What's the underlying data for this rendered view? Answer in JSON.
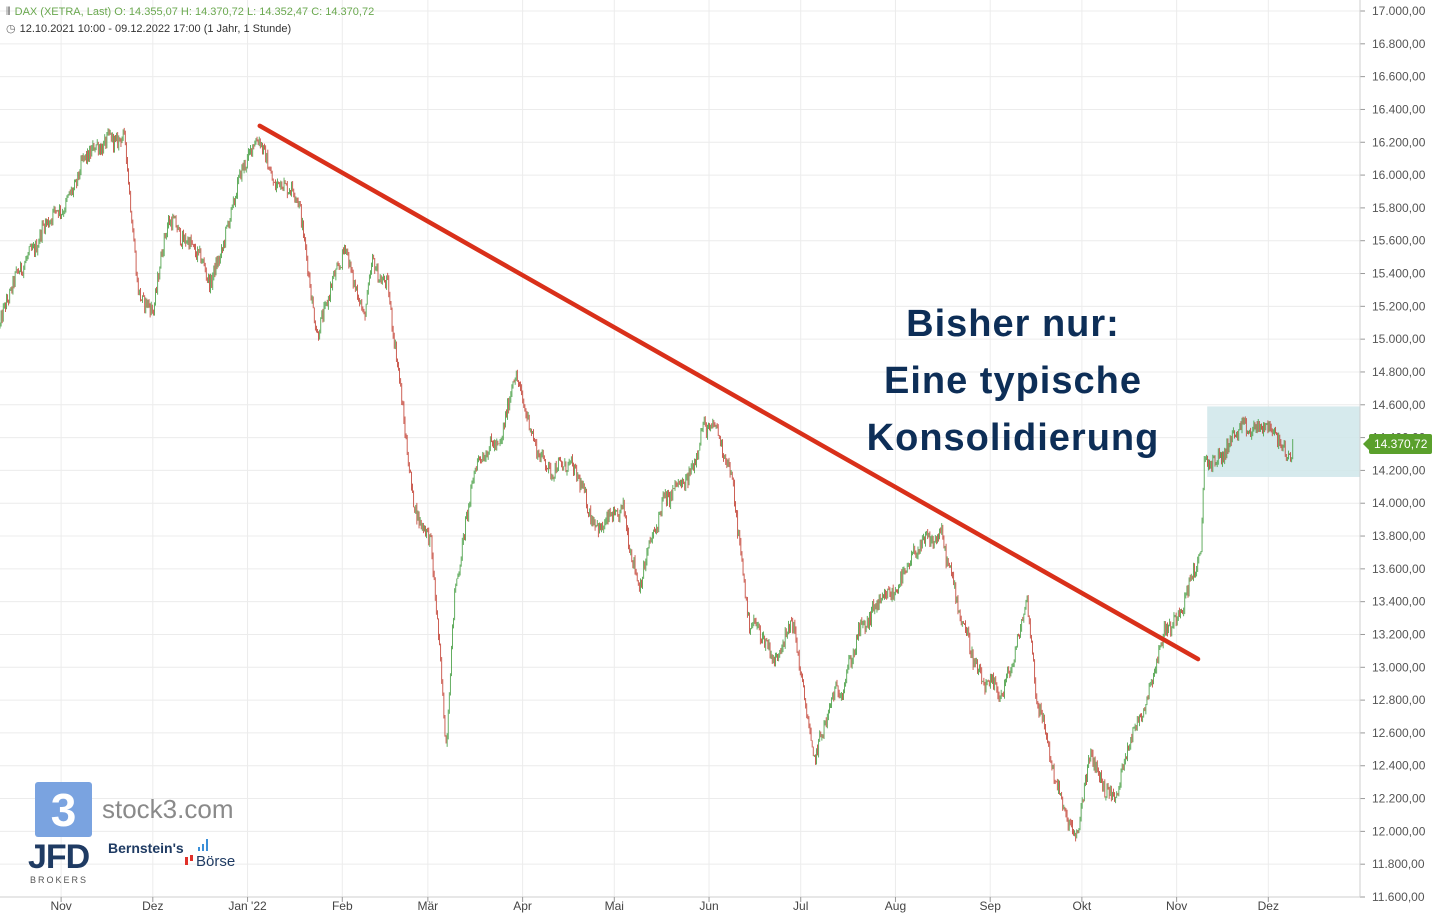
{
  "header": {
    "line1": "DAX (XETRA, Last)  O: 14.355,07  H: 14.370,72  L: 14.352,47  C: 14.370,72",
    "line2": "12.10.2021 10:00 - 09.12.2022 17:00   (1 Jahr, 1 Stunde)"
  },
  "annotation": {
    "line1": "Bisher nur:",
    "line2": "Eine typische",
    "line3": "Konsolidierung"
  },
  "last_price_badge": "14.370,72",
  "logos": {
    "stock3_mark": "3",
    "stock3_text": "stock3.com",
    "jfd": "JFD",
    "jfd_sub": "BROKERS",
    "bernstein": "Bernstein's",
    "boerse": "Börse"
  },
  "colors": {
    "up_candle": "#3d9a3a",
    "down_candle": "#c0392b",
    "trendline": "#d9301a",
    "consolidation_box": "#cfe6ea",
    "grid": "#ececec",
    "annotation": "#0d2e57",
    "badge": "#5aa02c"
  },
  "chart_data": {
    "type": "candlestick",
    "title": "DAX (XETRA, Last)",
    "x_range": [
      "2021-10-12",
      "2022-12-09"
    ],
    "x_ticks": [
      "Nov",
      "Dez",
      "Jan '22",
      "Feb",
      "Mär",
      "Apr",
      "Mai",
      "Jun",
      "Jul",
      "Aug",
      "Sep",
      "Okt",
      "Nov",
      "Dez"
    ],
    "y_ticks": [
      "17.000,00",
      "16.800,00",
      "16.600,00",
      "16.400,00",
      "16.200,00",
      "16.000,00",
      "15.800,00",
      "15.600,00",
      "15.400,00",
      "15.200,00",
      "15.000,00",
      "14.800,00",
      "14.600,00",
      "14.400,00",
      "14.200,00",
      "14.000,00",
      "13.800,00",
      "13.600,00",
      "13.400,00",
      "13.200,00",
      "13.000,00",
      "12.800,00",
      "12.600,00",
      "12.400,00",
      "12.200,00",
      "12.000,00",
      "11.800,00",
      "11.600,00"
    ],
    "ylim": [
      11600,
      17000
    ],
    "y_axis_position": "right",
    "grid": true,
    "anchors": [
      [
        "2021-10-12",
        15080
      ],
      [
        "2021-10-20",
        15500
      ],
      [
        "2021-11-01",
        15800
      ],
      [
        "2021-11-08",
        16050
      ],
      [
        "2021-11-17",
        16260
      ],
      [
        "2021-11-22",
        16180
      ],
      [
        "2021-11-26",
        15300
      ],
      [
        "2021-12-01",
        15200
      ],
      [
        "2021-12-06",
        15700
      ],
      [
        "2021-12-14",
        15600
      ],
      [
        "2021-12-20",
        15300
      ],
      [
        "2021-12-28",
        15900
      ],
      [
        "2022-01-05",
        16250
      ],
      [
        "2022-01-10",
        15950
      ],
      [
        "2022-01-18",
        15850
      ],
      [
        "2022-01-24",
        15000
      ],
      [
        "2022-02-02",
        15600
      ],
      [
        "2022-02-08",
        15100
      ],
      [
        "2022-02-11",
        15450
      ],
      [
        "2022-02-16",
        15350
      ],
      [
        "2022-02-24",
        14000
      ],
      [
        "2022-03-02",
        13800
      ],
      [
        "2022-03-07",
        12500
      ],
      [
        "2022-03-10",
        13500
      ],
      [
        "2022-03-16",
        14200
      ],
      [
        "2022-03-25",
        14400
      ],
      [
        "2022-03-29",
        14800
      ],
      [
        "2022-04-04",
        14400
      ],
      [
        "2022-04-11",
        14200
      ],
      [
        "2022-04-19",
        14200
      ],
      [
        "2022-04-26",
        13800
      ],
      [
        "2022-05-04",
        14000
      ],
      [
        "2022-05-09",
        13450
      ],
      [
        "2022-05-17",
        14050
      ],
      [
        "2022-05-25",
        14100
      ],
      [
        "2022-05-30",
        14500
      ],
      [
        "2022-06-03",
        14450
      ],
      [
        "2022-06-09",
        14100
      ],
      [
        "2022-06-14",
        13300
      ],
      [
        "2022-06-22",
        13050
      ],
      [
        "2022-06-28",
        13300
      ],
      [
        "2022-07-05",
        12450
      ],
      [
        "2022-07-11",
        12800
      ],
      [
        "2022-07-15",
        12850
      ],
      [
        "2022-07-20",
        13250
      ],
      [
        "2022-07-29",
        13400
      ],
      [
        "2022-08-04",
        13600
      ],
      [
        "2022-08-16",
        13850
      ],
      [
        "2022-08-22",
        13300
      ],
      [
        "2022-08-29",
        12950
      ],
      [
        "2022-09-05",
        12800
      ],
      [
        "2022-09-09",
        13100
      ],
      [
        "2022-09-13",
        13450
      ],
      [
        "2022-09-16",
        12800
      ],
      [
        "2022-09-23",
        12300
      ],
      [
        "2022-09-29",
        11900
      ],
      [
        "2022-10-04",
        12500
      ],
      [
        "2022-10-07",
        12350
      ],
      [
        "2022-10-12",
        12150
      ],
      [
        "2022-10-17",
        12600
      ],
      [
        "2022-10-24",
        12900
      ],
      [
        "2022-10-28",
        13200
      ],
      [
        "2022-11-04",
        13450
      ],
      [
        "2022-11-09",
        13650
      ],
      [
        "2022-11-10",
        14250
      ],
      [
        "2022-11-15",
        14300
      ],
      [
        "2022-11-22",
        14420
      ],
      [
        "2022-11-28",
        14500
      ],
      [
        "2022-12-01",
        14450
      ],
      [
        "2022-12-05",
        14350
      ],
      [
        "2022-12-07",
        14250
      ],
      [
        "2022-12-09",
        14370
      ]
    ],
    "trendline": {
      "from": [
        "2022-01-05",
        16300
      ],
      "to": [
        "2022-11-08",
        13050
      ]
    },
    "consolidation_zone": {
      "x": [
        "2022-11-11",
        "2022-12-31"
      ],
      "y": [
        14160,
        14590
      ]
    },
    "last": 14370.72
  }
}
